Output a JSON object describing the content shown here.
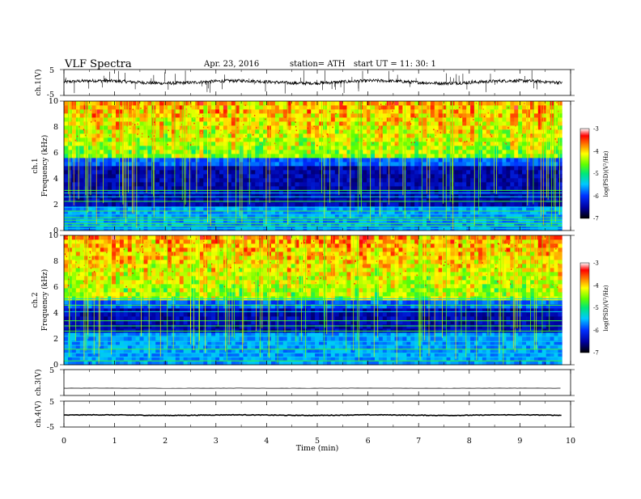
{
  "header": {
    "title": "VLF  Spectra",
    "date": "Apr. 23, 2016",
    "station": "station= ATH",
    "start": "start  UT  =   11: 30: 1"
  },
  "chart_data": [
    {
      "type": "line",
      "name": "ch1-waveform",
      "ylabel": "ch.1(V)",
      "yticks": [
        "5",
        "-5"
      ],
      "ylim": [
        -5,
        5
      ],
      "baseline": 0.2,
      "noise": 1.2
    },
    {
      "type": "heatmap",
      "name": "ch1-spectrogram",
      "ylabel_top": "ch.1",
      "ylabel": "Frequency  (kHz)",
      "yticks": [
        "0",
        "2",
        "4",
        "6",
        "8",
        "10"
      ],
      "ylim": [
        0,
        10
      ],
      "xlim": [
        0,
        10
      ],
      "data_end_min": 9.83,
      "colorbar": {
        "label": "log(PSD)(V²/Hz)",
        "ticks": [
          "-3",
          "-4",
          "-5",
          "-6",
          "-7"
        ],
        "range": [
          -7,
          -3
        ]
      },
      "bands_khz": [
        0.15,
        0.35,
        0.55,
        0.8,
        1.0,
        1.25,
        1.5,
        1.8,
        2.25,
        2.6,
        2.9,
        3.1
      ],
      "quiet_band_khz": [
        2.0,
        5.6
      ]
    },
    {
      "type": "heatmap",
      "name": "ch2-spectrogram",
      "ylabel_top": "ch.2",
      "ylabel": "Frequency  (kHz)",
      "yticks": [
        "0",
        "2",
        "4",
        "6",
        "8",
        "10"
      ],
      "ylim": [
        0,
        10
      ],
      "xlim": [
        0,
        10
      ],
      "data_end_min": 9.83,
      "colorbar": {
        "label": "log(PSD)(V²/Hz)",
        "ticks": [
          "-3",
          "-4",
          "-5",
          "-6",
          "-7"
        ],
        "range": [
          -7,
          -3
        ]
      },
      "bands_khz": [
        0.3,
        0.6,
        0.9,
        1.2,
        1.5,
        1.8,
        2.2,
        2.6,
        3.0,
        3.4,
        4.1,
        4.6,
        5.1
      ],
      "quiet_band_khz": [
        2.6,
        5.0
      ]
    },
    {
      "type": "line",
      "name": "ch3-waveform",
      "ylabel": "ch.3(V)",
      "yticks": [
        "5"
      ],
      "ylim": [
        -5,
        5
      ],
      "baseline": -2.2,
      "noise": 0.05
    },
    {
      "type": "line",
      "name": "ch4-waveform",
      "ylabel": "ch.4(V)",
      "yticks": [
        "5",
        "-5"
      ],
      "ylim": [
        -5,
        5
      ],
      "baseline": -0.4,
      "noise": 0.25
    }
  ],
  "xaxis": {
    "label": "Time  (min)",
    "ticks": [
      "0",
      "1",
      "2",
      "3",
      "4",
      "5",
      "6",
      "7",
      "8",
      "9",
      "10"
    ],
    "range": [
      0,
      10
    ]
  }
}
